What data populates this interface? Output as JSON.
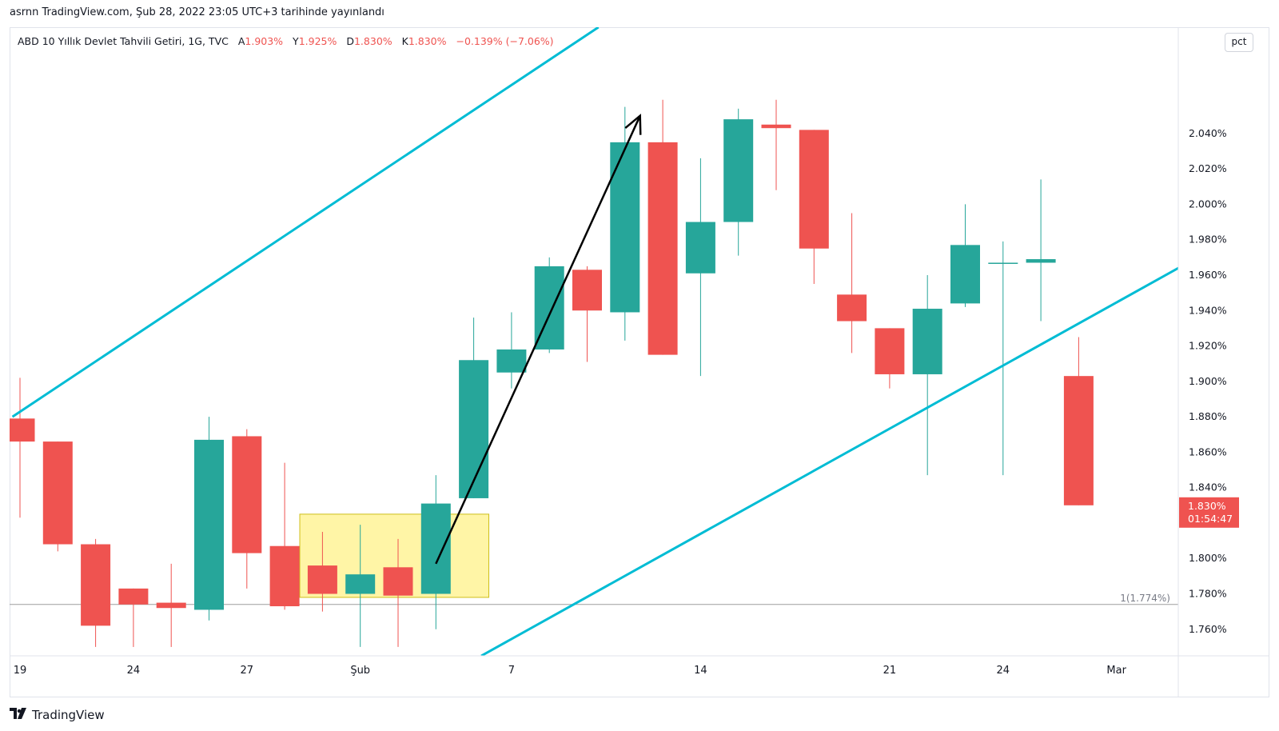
{
  "header": {
    "publisher_line": "asrnn TradingView.com, Şub 28, 2022 23:05 UTC+3 tarihinde yayınlandı"
  },
  "legend": {
    "symbol": "ABD 10 Yıllık Devlet Tahvili Getiri, 1G, TVC",
    "open_label": "A",
    "open_value": "1.903%",
    "high_label": "Y",
    "high_value": "1.925%",
    "low_label": "D",
    "low_value": "1.830%",
    "close_label": "K",
    "close_value": "1.830%",
    "change": "−0.139% (−7.06%)"
  },
  "unit_button": "pct",
  "footer": {
    "brand": "TradingView",
    "logo_icon": "tradingview-logo-icon"
  },
  "colors": {
    "up": "#26a69a",
    "down": "#ef5350",
    "channel": "#00bcd4",
    "highlight_fill": "#fff59d",
    "highlight_stroke": "#c9b800",
    "arrow": "#000000"
  },
  "chart_data": {
    "type": "candlestick",
    "ylim": [
      1.745,
      2.1
    ],
    "yticks": [
      "2.040%",
      "2.020%",
      "2.000%",
      "1.980%",
      "1.960%",
      "1.940%",
      "1.920%",
      "1.900%",
      "1.880%",
      "1.860%",
      "1.840%",
      "1.800%",
      "1.780%",
      "1.760%"
    ],
    "ytick_values": [
      2.04,
      2.02,
      2.0,
      1.98,
      1.96,
      1.94,
      1.92,
      1.9,
      1.88,
      1.86,
      1.84,
      1.8,
      1.78,
      1.76
    ],
    "xticks": [
      {
        "label": "19",
        "i": 0
      },
      {
        "label": "24",
        "i": 3
      },
      {
        "label": "27",
        "i": 6
      },
      {
        "label": "Şub",
        "i": 9
      },
      {
        "label": "7",
        "i": 13
      },
      {
        "label": "14",
        "i": 18
      },
      {
        "label": "21",
        "i": 23
      },
      {
        "label": "24",
        "i": 26
      },
      {
        "label": "Mar",
        "i": 29
      }
    ],
    "candles": [
      {
        "date": "Oca 19",
        "o": 1.879,
        "h": 1.902,
        "l": 1.823,
        "c": 1.866
      },
      {
        "date": "Oca 20",
        "o": 1.866,
        "h": 1.866,
        "l": 1.804,
        "c": 1.808
      },
      {
        "date": "Oca 21",
        "o": 1.808,
        "h": 1.811,
        "l": 1.75,
        "c": 1.762
      },
      {
        "date": "Oca 24",
        "o": 1.783,
        "h": 1.783,
        "l": 1.75,
        "c": 1.774
      },
      {
        "date": "Oca 25",
        "o": 1.775,
        "h": 1.797,
        "l": 1.75,
        "c": 1.772
      },
      {
        "date": "Oca 26",
        "o": 1.771,
        "h": 1.88,
        "l": 1.765,
        "c": 1.867
      },
      {
        "date": "Oca 27",
        "o": 1.869,
        "h": 1.873,
        "l": 1.783,
        "c": 1.803
      },
      {
        "date": "Oca 28",
        "o": 1.807,
        "h": 1.854,
        "l": 1.771,
        "c": 1.773
      },
      {
        "date": "Oca 31",
        "o": 1.796,
        "h": 1.815,
        "l": 1.77,
        "c": 1.78
      },
      {
        "date": "Şub 1",
        "o": 1.78,
        "h": 1.819,
        "l": 1.75,
        "c": 1.791
      },
      {
        "date": "Şub 2",
        "o": 1.795,
        "h": 1.811,
        "l": 1.75,
        "c": 1.779
      },
      {
        "date": "Şub 3",
        "o": 1.78,
        "h": 1.847,
        "l": 1.76,
        "c": 1.831
      },
      {
        "date": "Şub 4",
        "o": 1.834,
        "h": 1.936,
        "l": 1.834,
        "c": 1.912
      },
      {
        "date": "Şub 7",
        "o": 1.905,
        "h": 1.939,
        "l": 1.896,
        "c": 1.918
      },
      {
        "date": "Şub 8",
        "o": 1.918,
        "h": 1.97,
        "l": 1.916,
        "c": 1.965
      },
      {
        "date": "Şub 9",
        "o": 1.963,
        "h": 1.965,
        "l": 1.911,
        "c": 1.94
      },
      {
        "date": "Şub 10",
        "o": 1.939,
        "h": 2.055,
        "l": 1.923,
        "c": 2.035
      },
      {
        "date": "Şub 11",
        "o": 2.035,
        "h": 2.059,
        "l": 1.915,
        "c": 1.915
      },
      {
        "date": "Şub 14",
        "o": 1.961,
        "h": 2.026,
        "l": 1.903,
        "c": 1.99
      },
      {
        "date": "Şub 15",
        "o": 1.99,
        "h": 2.054,
        "l": 1.971,
        "c": 2.048
      },
      {
        "date": "Şub 16",
        "o": 2.045,
        "h": 2.059,
        "l": 2.008,
        "c": 2.043
      },
      {
        "date": "Şub 17",
        "o": 2.042,
        "h": 2.042,
        "l": 1.955,
        "c": 1.975
      },
      {
        "date": "Şub 18",
        "o": 1.949,
        "h": 1.995,
        "l": 1.916,
        "c": 1.934
      },
      {
        "date": "Şub 22",
        "o": 1.93,
        "h": 1.93,
        "l": 1.896,
        "c": 1.904
      },
      {
        "date": "Şub 23",
        "o": 1.904,
        "h": 1.96,
        "l": 1.847,
        "c": 1.941
      },
      {
        "date": "Şub 24 a",
        "o": 1.944,
        "h": 2.0,
        "l": 1.942,
        "c": 1.977
      },
      {
        "date": "Şub 24",
        "o": 1.967,
        "h": 1.979,
        "l": 1.847,
        "c": 1.967
      },
      {
        "date": "Şub 25",
        "o": 1.967,
        "h": 2.014,
        "l": 1.934,
        "c": 1.969
      },
      {
        "date": "Şub 28",
        "o": 1.903,
        "h": 1.925,
        "l": 1.83,
        "c": 1.83
      }
    ],
    "current_price_label": "1.830%",
    "countdown_label": "01:54:47",
    "hline": {
      "value": 1.774,
      "label": "1(1.774%)"
    },
    "channel_lines": [
      {
        "from": {
          "i": -0.2,
          "v": 1.88
        },
        "to": {
          "i": 15.3,
          "v": 2.1
        }
      },
      {
        "from": {
          "i": 12.2,
          "v": 1.745
        },
        "to": {
          "i": 31.9,
          "v": 1.979
        }
      }
    ],
    "highlight_box": {
      "from": {
        "i": 7.4,
        "v": 1.825
      },
      "to": {
        "i": 12.4,
        "v": 1.778
      }
    },
    "arrow": {
      "from": {
        "i": 11.0,
        "v": 1.797
      },
      "to": {
        "i": 16.4,
        "v": 2.05
      }
    }
  }
}
